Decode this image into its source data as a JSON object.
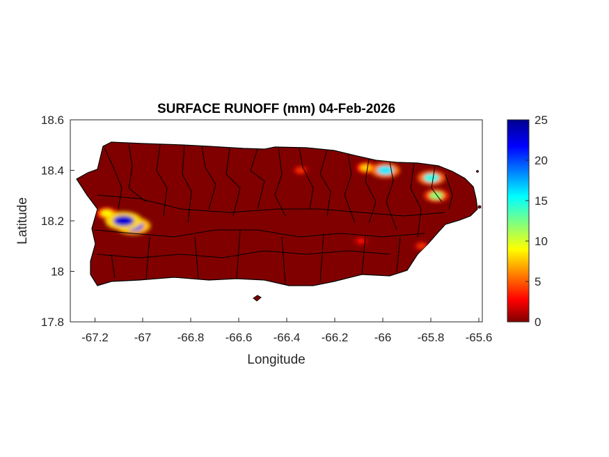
{
  "title": "SURFACE RUNOFF (mm) 04-Feb-2026",
  "xlabel": "Longitude",
  "ylabel": "Latitude",
  "x_ticks": [
    "-67.2",
    "-67",
    "-66.8",
    "-66.6",
    "-66.4",
    "-66.2",
    "-66",
    "-65.8",
    "-65.6"
  ],
  "y_ticks": [
    "18.6",
    "18.4",
    "18.2",
    "18",
    "17.8"
  ],
  "colorbar_ticks": [
    "25",
    "20",
    "15",
    "10",
    "5",
    "0"
  ],
  "colors": {
    "land_background": "#800000",
    "high_runoff": "#0000c8",
    "axis": "#262626"
  },
  "chart_data": {
    "type": "heatmap",
    "title": "SURFACE RUNOFF (mm) 04-Feb-2026",
    "xlabel": "Longitude",
    "ylabel": "Latitude",
    "xlim": [
      -67.3,
      -65.6
    ],
    "ylim": [
      17.8,
      18.6
    ],
    "x_ticks": [
      -67.2,
      -67.0,
      -66.8,
      -66.6,
      -66.4,
      -66.2,
      -66.0,
      -65.8,
      -65.6
    ],
    "y_ticks": [
      17.8,
      18.0,
      18.2,
      18.4,
      18.6
    ],
    "colorbar": {
      "min": 0,
      "max": 25,
      "ticks": [
        0,
        5,
        10,
        15,
        20,
        25
      ],
      "colormap": "jet"
    },
    "grid": false,
    "hotspots": [
      {
        "lon": -67.08,
        "lat": 18.2,
        "value": 23
      },
      {
        "lon": -67.04,
        "lat": 18.18,
        "value": 21
      },
      {
        "lon": -67.15,
        "lat": 18.23,
        "value": 9
      },
      {
        "lon": -66.0,
        "lat": 18.4,
        "value": 16
      },
      {
        "lon": -65.81,
        "lat": 18.37,
        "value": 15
      },
      {
        "lon": -65.79,
        "lat": 18.3,
        "value": 12
      },
      {
        "lon": -66.08,
        "lat": 18.41,
        "value": 8
      },
      {
        "lon": -66.35,
        "lat": 18.4,
        "value": 4
      },
      {
        "lon": -65.85,
        "lat": 18.1,
        "value": 4
      },
      {
        "lon": -66.1,
        "lat": 18.12,
        "value": 3
      }
    ]
  }
}
